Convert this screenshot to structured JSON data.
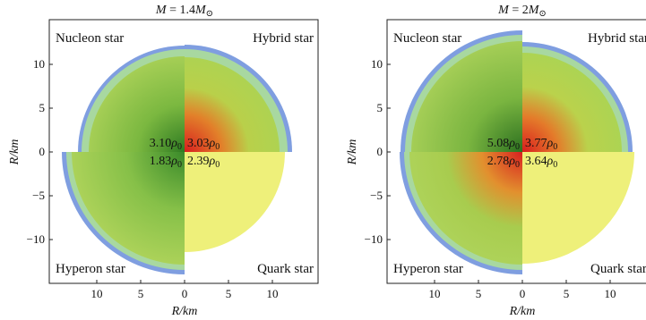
{
  "panels": [
    {
      "title": "M = 1.4M⊙",
      "title_parts": {
        "prefix": "M",
        "eq": " = 1.4",
        "var": "M",
        "sub": "⊙"
      },
      "xlabel": "R/km",
      "ylabel": "R/km",
      "xticks": [
        "10",
        "5",
        "0",
        "5",
        "10"
      ],
      "yticks": [
        "10",
        "5",
        "0",
        "−5",
        "−10"
      ],
      "quadrant_labels": {
        "top_left": "Nucleon star",
        "top_right": "Hybrid star",
        "bottom_left": "Hyperon star",
        "bottom_right": "Quark star"
      },
      "central_densities": {
        "nucleon": "3.10ρ0",
        "hybrid": "3.03ρ0",
        "hyperon": "1.83ρ0",
        "quark": "2.39ρ0"
      },
      "radii_km": {
        "nucleon": 12.3,
        "hybrid": 12.4,
        "hyperon": 14.2,
        "quark": 11.4
      }
    },
    {
      "title": "M = 2M⊙",
      "title_parts": {
        "prefix": "M",
        "eq": " = 2",
        "var": "M",
        "sub": "⊙"
      },
      "xlabel": "R/km",
      "ylabel": "R/km",
      "xticks": [
        "10",
        "5",
        "0",
        "5",
        "10"
      ],
      "yticks": [
        "10",
        "5",
        "0",
        "−5",
        "−10"
      ],
      "quadrant_labels": {
        "top_left": "Nucleon star",
        "top_right": "Hybrid star",
        "bottom_left": "Hyperon star",
        "bottom_right": "Quark star"
      },
      "central_densities": {
        "nucleon": "5.08ρ0",
        "hybrid": "3.77ρ0",
        "hyperon": "2.78ρ0",
        "quark": "3.64ρ0"
      },
      "radii_km": {
        "nucleon": 14.0,
        "hybrid": 12.6,
        "hyperon": 14.2,
        "quark": 12.8
      }
    }
  ],
  "colors": {
    "crust_outer": "#7f9ee0",
    "crust_inner": "#a8d8a0",
    "green_core": "#3f8f2e",
    "green_mid": "#86c04a",
    "green_edge": "#b8d860",
    "red_core": "#d81e1e",
    "red_mid": "#e8a030",
    "quark_fill": "#eef07a"
  }
}
